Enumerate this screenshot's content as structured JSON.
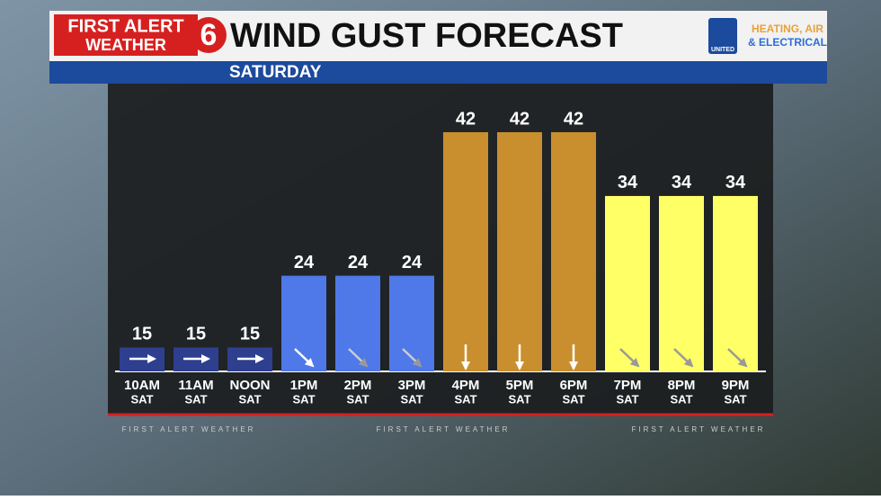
{
  "branding": {
    "logo_top": "FIRST ALERT",
    "logo_bottom": "WEATHER",
    "logo_number": "6",
    "sponsor_badge": "UNITED",
    "sponsor_line1": "HEATING, AIR",
    "sponsor_line2": "& ELECTRICAL",
    "footer": [
      "FIRST ALERT WEATHER",
      "FIRST ALERT WEATHER",
      "FIRST ALERT WEATHER"
    ]
  },
  "chart_data": {
    "type": "bar",
    "title": "WIND GUST FORECAST",
    "subtitle": "SATURDAY",
    "categories": [
      "10AM",
      "11AM",
      "NOON",
      "1PM",
      "2PM",
      "3PM",
      "4PM",
      "5PM",
      "6PM",
      "7PM",
      "8PM",
      "9PM"
    ],
    "category_sublabels": [
      "SAT",
      "SAT",
      "SAT",
      "SAT",
      "SAT",
      "SAT",
      "SAT",
      "SAT",
      "SAT",
      "SAT",
      "SAT",
      "SAT"
    ],
    "values": [
      15,
      15,
      15,
      24,
      24,
      24,
      42,
      42,
      42,
      34,
      34,
      34
    ],
    "colors": [
      "#2e3f8f",
      "#2e3f8f",
      "#2e3f8f",
      "#4f78e8",
      "#4f78e8",
      "#4f78e8",
      "#c98f2e",
      "#c98f2e",
      "#c98f2e",
      "#ffff66",
      "#ffff66",
      "#ffff66"
    ],
    "ylim": [
      12,
      42
    ]
  }
}
